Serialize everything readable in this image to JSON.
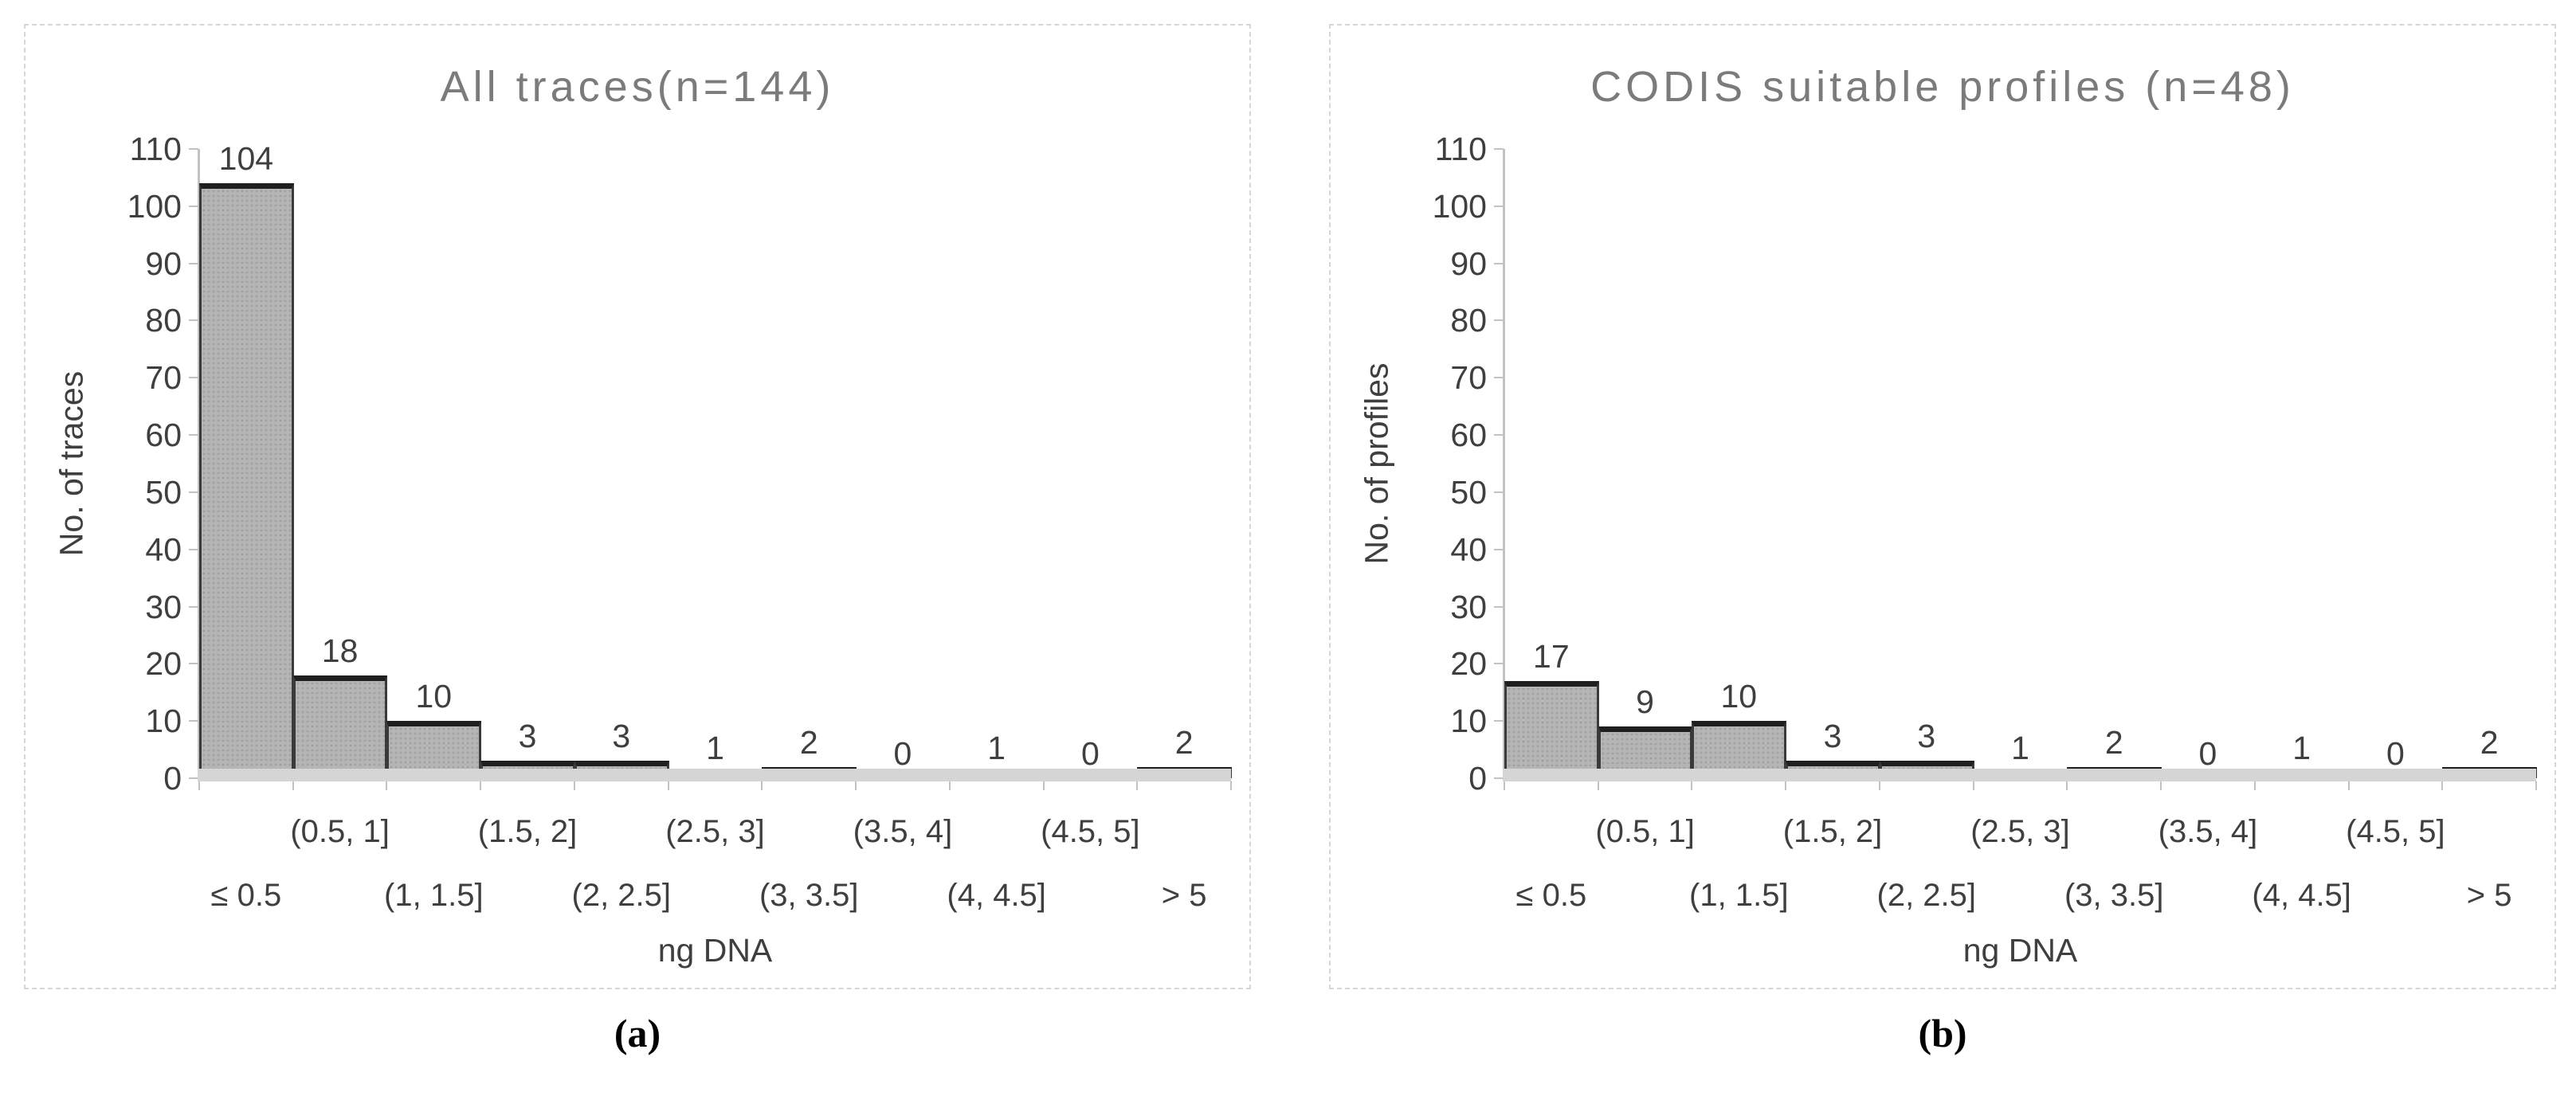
{
  "chart_data": [
    {
      "type": "bar",
      "title": "All traces(n=144)",
      "ylabel": "No. of traces",
      "xlabel": "ng DNA",
      "categories": [
        "≤ 0.5",
        "(0.5, 1]",
        "(1, 1.5]",
        "(1.5, 2]",
        "(2, 2.5]",
        "(2.5, 3]",
        "(3, 3.5]",
        "(3.5, 4]",
        "(4, 4.5]",
        "(4.5, 5]",
        "> 5"
      ],
      "values": [
        104,
        18,
        10,
        3,
        3,
        1,
        2,
        0,
        1,
        0,
        2
      ],
      "ylim": [
        0,
        110
      ],
      "ytick_step": 10,
      "grid": "off",
      "legend": "none",
      "bar_labels": "above each bar",
      "x_label_layout": "staggered two rows, odd-index categories raised"
    },
    {
      "type": "bar",
      "title": "CODIS suitable profiles (n=48)",
      "ylabel": "No. of profiles",
      "xlabel": "ng DNA",
      "categories": [
        "≤ 0.5",
        "(0.5, 1]",
        "(1, 1.5]",
        "(1.5, 2]",
        "(2, 2.5]",
        "(2.5, 3]",
        "(3, 3.5]",
        "(3.5, 4]",
        "(4, 4.5]",
        "(4.5, 5]",
        "> 5"
      ],
      "values": [
        17,
        9,
        10,
        3,
        3,
        1,
        2,
        0,
        1,
        0,
        2
      ],
      "ylim": [
        0,
        110
      ],
      "ytick_step": 10,
      "grid": "off",
      "legend": "none",
      "bar_labels": "above each bar",
      "x_label_layout": "staggered two rows, odd-index categories raised"
    }
  ],
  "figure": {
    "captions": [
      "(a)",
      "(b)"
    ]
  },
  "colors": {
    "panel_border": "#d6d6d6",
    "title_color": "#7b7b7b",
    "label_color": "#3f3f3f",
    "axis_color": "#c2c2c2",
    "bar_fill": "#b5b5b5",
    "bar_speckle": "#a2a2a2",
    "bar_top_border": "#1f1f1f",
    "bar_side_border": "#3a3a3a",
    "strip_color": "#d5d5d5"
  }
}
